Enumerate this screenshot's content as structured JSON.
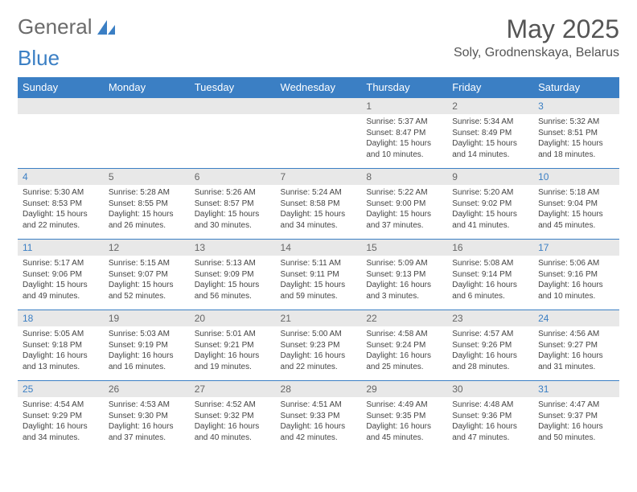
{
  "logo": {
    "text1": "General",
    "text2": "Blue"
  },
  "title": "May 2025",
  "location": "Soly, Grodnenskaya, Belarus",
  "colors": {
    "header_bg": "#3b7fc4",
    "header_text": "#ffffff",
    "daynum_bg": "#e8e8e8",
    "weekend_color": "#3b7fc4",
    "text": "#444444",
    "border": "#3b7fc4"
  },
  "weekdays": [
    "Sunday",
    "Monday",
    "Tuesday",
    "Wednesday",
    "Thursday",
    "Friday",
    "Saturday"
  ],
  "weeks": [
    [
      null,
      null,
      null,
      null,
      {
        "n": "1",
        "sr": "5:37 AM",
        "ss": "8:47 PM",
        "dl": "15 hours and 10 minutes."
      },
      {
        "n": "2",
        "sr": "5:34 AM",
        "ss": "8:49 PM",
        "dl": "15 hours and 14 minutes."
      },
      {
        "n": "3",
        "sr": "5:32 AM",
        "ss": "8:51 PM",
        "dl": "15 hours and 18 minutes."
      }
    ],
    [
      {
        "n": "4",
        "sr": "5:30 AM",
        "ss": "8:53 PM",
        "dl": "15 hours and 22 minutes."
      },
      {
        "n": "5",
        "sr": "5:28 AM",
        "ss": "8:55 PM",
        "dl": "15 hours and 26 minutes."
      },
      {
        "n": "6",
        "sr": "5:26 AM",
        "ss": "8:57 PM",
        "dl": "15 hours and 30 minutes."
      },
      {
        "n": "7",
        "sr": "5:24 AM",
        "ss": "8:58 PM",
        "dl": "15 hours and 34 minutes."
      },
      {
        "n": "8",
        "sr": "5:22 AM",
        "ss": "9:00 PM",
        "dl": "15 hours and 37 minutes."
      },
      {
        "n": "9",
        "sr": "5:20 AM",
        "ss": "9:02 PM",
        "dl": "15 hours and 41 minutes."
      },
      {
        "n": "10",
        "sr": "5:18 AM",
        "ss": "9:04 PM",
        "dl": "15 hours and 45 minutes."
      }
    ],
    [
      {
        "n": "11",
        "sr": "5:17 AM",
        "ss": "9:06 PM",
        "dl": "15 hours and 49 minutes."
      },
      {
        "n": "12",
        "sr": "5:15 AM",
        "ss": "9:07 PM",
        "dl": "15 hours and 52 minutes."
      },
      {
        "n": "13",
        "sr": "5:13 AM",
        "ss": "9:09 PM",
        "dl": "15 hours and 56 minutes."
      },
      {
        "n": "14",
        "sr": "5:11 AM",
        "ss": "9:11 PM",
        "dl": "15 hours and 59 minutes."
      },
      {
        "n": "15",
        "sr": "5:09 AM",
        "ss": "9:13 PM",
        "dl": "16 hours and 3 minutes."
      },
      {
        "n": "16",
        "sr": "5:08 AM",
        "ss": "9:14 PM",
        "dl": "16 hours and 6 minutes."
      },
      {
        "n": "17",
        "sr": "5:06 AM",
        "ss": "9:16 PM",
        "dl": "16 hours and 10 minutes."
      }
    ],
    [
      {
        "n": "18",
        "sr": "5:05 AM",
        "ss": "9:18 PM",
        "dl": "16 hours and 13 minutes."
      },
      {
        "n": "19",
        "sr": "5:03 AM",
        "ss": "9:19 PM",
        "dl": "16 hours and 16 minutes."
      },
      {
        "n": "20",
        "sr": "5:01 AM",
        "ss": "9:21 PM",
        "dl": "16 hours and 19 minutes."
      },
      {
        "n": "21",
        "sr": "5:00 AM",
        "ss": "9:23 PM",
        "dl": "16 hours and 22 minutes."
      },
      {
        "n": "22",
        "sr": "4:58 AM",
        "ss": "9:24 PM",
        "dl": "16 hours and 25 minutes."
      },
      {
        "n": "23",
        "sr": "4:57 AM",
        "ss": "9:26 PM",
        "dl": "16 hours and 28 minutes."
      },
      {
        "n": "24",
        "sr": "4:56 AM",
        "ss": "9:27 PM",
        "dl": "16 hours and 31 minutes."
      }
    ],
    [
      {
        "n": "25",
        "sr": "4:54 AM",
        "ss": "9:29 PM",
        "dl": "16 hours and 34 minutes."
      },
      {
        "n": "26",
        "sr": "4:53 AM",
        "ss": "9:30 PM",
        "dl": "16 hours and 37 minutes."
      },
      {
        "n": "27",
        "sr": "4:52 AM",
        "ss": "9:32 PM",
        "dl": "16 hours and 40 minutes."
      },
      {
        "n": "28",
        "sr": "4:51 AM",
        "ss": "9:33 PM",
        "dl": "16 hours and 42 minutes."
      },
      {
        "n": "29",
        "sr": "4:49 AM",
        "ss": "9:35 PM",
        "dl": "16 hours and 45 minutes."
      },
      {
        "n": "30",
        "sr": "4:48 AM",
        "ss": "9:36 PM",
        "dl": "16 hours and 47 minutes."
      },
      {
        "n": "31",
        "sr": "4:47 AM",
        "ss": "9:37 PM",
        "dl": "16 hours and 50 minutes."
      }
    ]
  ],
  "labels": {
    "sunrise": "Sunrise:",
    "sunset": "Sunset:",
    "daylight": "Daylight:"
  }
}
